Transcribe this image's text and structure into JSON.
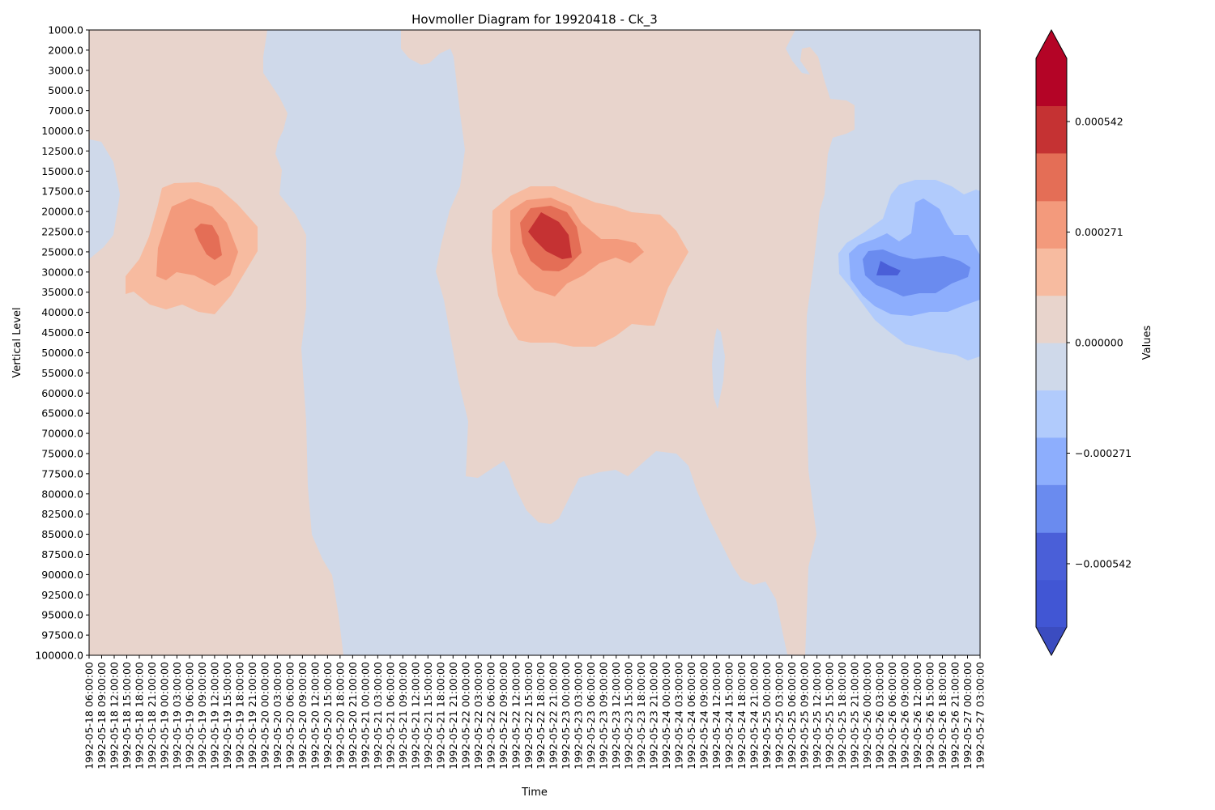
{
  "chart_data": {
    "type": "heatmap",
    "subtype": "filled-contour",
    "title": "Hovmoller Diagram for 19920418 - Ck_3",
    "xlabel": "Time",
    "ylabel": "Vertical Level",
    "colorbar_label": "Values",
    "colormap": "coolwarm",
    "y_ticks": [
      "1000.0",
      "2000.0",
      "3000.0",
      "5000.0",
      "7000.0",
      "10000.0",
      "12500.0",
      "15000.0",
      "17500.0",
      "20000.0",
      "22500.0",
      "25000.0",
      "30000.0",
      "35000.0",
      "40000.0",
      "45000.0",
      "50000.0",
      "55000.0",
      "60000.0",
      "65000.0",
      "70000.0",
      "75000.0",
      "77500.0",
      "80000.0",
      "82500.0",
      "85000.0",
      "87500.0",
      "90000.0",
      "92500.0",
      "95000.0",
      "97500.0",
      "100000.0"
    ],
    "x_ticks": [
      "1992-05-18 06:00:00",
      "1992-05-18 09:00:00",
      "1992-05-18 12:00:00",
      "1992-05-18 15:00:00",
      "1992-05-18 18:00:00",
      "1992-05-18 21:00:00",
      "1992-05-19 00:00:00",
      "1992-05-19 03:00:00",
      "1992-05-19 06:00:00",
      "1992-05-19 09:00:00",
      "1992-05-19 12:00:00",
      "1992-05-19 15:00:00",
      "1992-05-19 18:00:00",
      "1992-05-19 21:00:00",
      "1992-05-20 00:00:00",
      "1992-05-20 03:00:00",
      "1992-05-20 06:00:00",
      "1992-05-20 09:00:00",
      "1992-05-20 12:00:00",
      "1992-05-20 15:00:00",
      "1992-05-20 18:00:00",
      "1992-05-20 21:00:00",
      "1992-05-21 00:00:00",
      "1992-05-21 03:00:00",
      "1992-05-21 06:00:00",
      "1992-05-21 09:00:00",
      "1992-05-21 12:00:00",
      "1992-05-21 15:00:00",
      "1992-05-21 18:00:00",
      "1992-05-21 21:00:00",
      "1992-05-22 00:00:00",
      "1992-05-22 03:00:00",
      "1992-05-22 06:00:00",
      "1992-05-22 09:00:00",
      "1992-05-22 12:00:00",
      "1992-05-22 15:00:00",
      "1992-05-22 18:00:00",
      "1992-05-22 21:00:00",
      "1992-05-23 00:00:00",
      "1992-05-23 03:00:00",
      "1992-05-23 06:00:00",
      "1992-05-23 09:00:00",
      "1992-05-23 12:00:00",
      "1992-05-23 15:00:00",
      "1992-05-23 18:00:00",
      "1992-05-23 21:00:00",
      "1992-05-24 00:00:00",
      "1992-05-24 03:00:00",
      "1992-05-24 06:00:00",
      "1992-05-24 09:00:00",
      "1992-05-24 12:00:00",
      "1992-05-24 15:00:00",
      "1992-05-24 18:00:00",
      "1992-05-24 21:00:00",
      "1992-05-25 00:00:00",
      "1992-05-25 03:00:00",
      "1992-05-25 06:00:00",
      "1992-05-25 09:00:00",
      "1992-05-25 12:00:00",
      "1992-05-25 15:00:00",
      "1992-05-25 18:00:00",
      "1992-05-25 21:00:00",
      "1992-05-26 00:00:00",
      "1992-05-26 03:00:00",
      "1992-05-26 06:00:00",
      "1992-05-26 09:00:00",
      "1992-05-26 12:00:00",
      "1992-05-26 15:00:00",
      "1992-05-26 18:00:00",
      "1992-05-26 21:00:00",
      "1992-05-27 00:00:00",
      "1992-05-27 03:00:00"
    ],
    "colorbar_ticks": [
      "0.000542",
      "0.000271",
      "0.000000",
      "−0.000271",
      "−0.000542"
    ],
    "colorbar_tick_values": [
      0.000542,
      0.000271,
      0.0,
      -0.000271,
      -0.000542
    ],
    "colorbar_range": [
      -0.000697,
      0.000697
    ],
    "colorbar_extend": "both",
    "levels": [
      -0.000697,
      -0.000581,
      -0.000465,
      -0.000348,
      -0.000232,
      -0.000116,
      0.0,
      0.000116,
      0.000232,
      0.000348,
      0.000465,
      0.000581,
      0.000697
    ],
    "level_colors": [
      "#4156d4",
      "#4a5fd8",
      "#6a8bef",
      "#8daefd",
      "#b1cbfc",
      "#cfd9ea",
      "#e8d4cc",
      "#f7bba0",
      "#f39a7c",
      "#e46e56",
      "#c53233",
      "#b40426"
    ],
    "features": [
      {
        "name": "negative pocket",
        "time": "1992-05-18 06:00:00",
        "level_range": [
          12500.0,
          25000.0
        ],
        "min_value": -0.000116
      },
      {
        "name": "positive maximum",
        "time": "1992-05-19 12:00:00",
        "level_range": [
          17500.0,
          40000.0
        ],
        "peak_value": 0.000465
      },
      {
        "name": "positive maximum",
        "time": "1992-05-22 21:00:00",
        "level_range": [
          17500.0,
          48000.0
        ],
        "peak_value": 0.000581
      },
      {
        "name": "negative minimum",
        "time": "1992-05-26 06:00:00",
        "level_range": [
          17500.0,
          52000.0
        ],
        "peak_value": -0.000581
      }
    ]
  }
}
